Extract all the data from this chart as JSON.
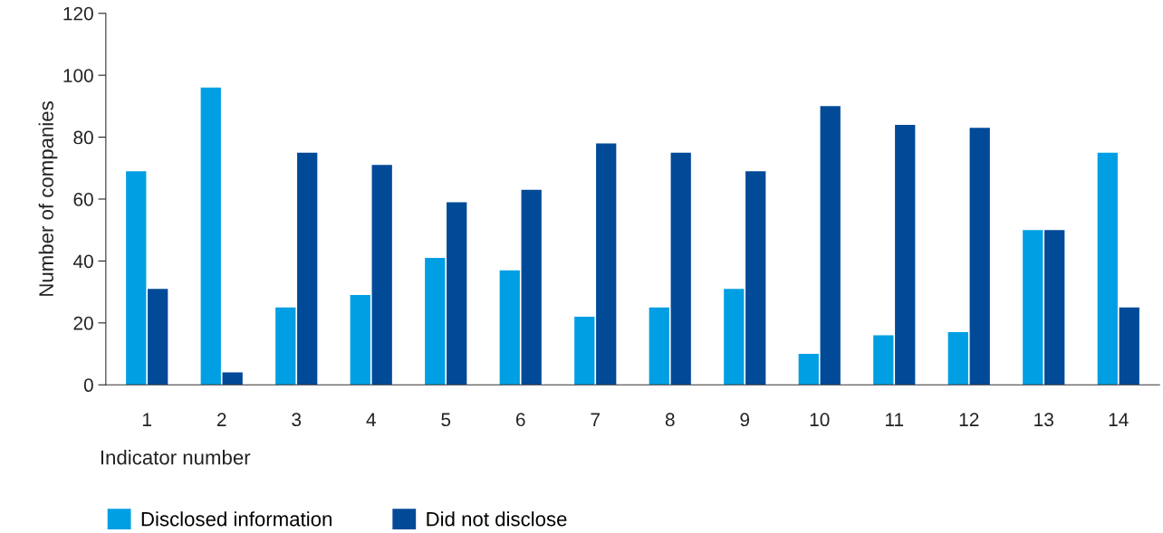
{
  "chart_data": {
    "type": "bar",
    "xlabel": "Indicator number",
    "ylabel": "Number of companies",
    "categories": [
      "1",
      "2",
      "3",
      "4",
      "5",
      "6",
      "7",
      "8",
      "9",
      "10",
      "11",
      "12",
      "13",
      "14"
    ],
    "series": [
      {
        "name": "Disclosed information",
        "color": "#009fe3",
        "values": [
          69,
          96,
          25,
          29,
          41,
          37,
          22,
          25,
          31,
          10,
          16,
          17,
          50,
          75
        ]
      },
      {
        "name": "Did not disclose",
        "color": "#004a98",
        "values": [
          31,
          4,
          75,
          71,
          59,
          63,
          78,
          75,
          69,
          90,
          84,
          83,
          50,
          25
        ]
      }
    ],
    "ylim": [
      0,
      120
    ],
    "yticks": [
      0,
      20,
      40,
      60,
      80,
      100,
      120
    ],
    "grid": false,
    "legend": "bottom"
  }
}
